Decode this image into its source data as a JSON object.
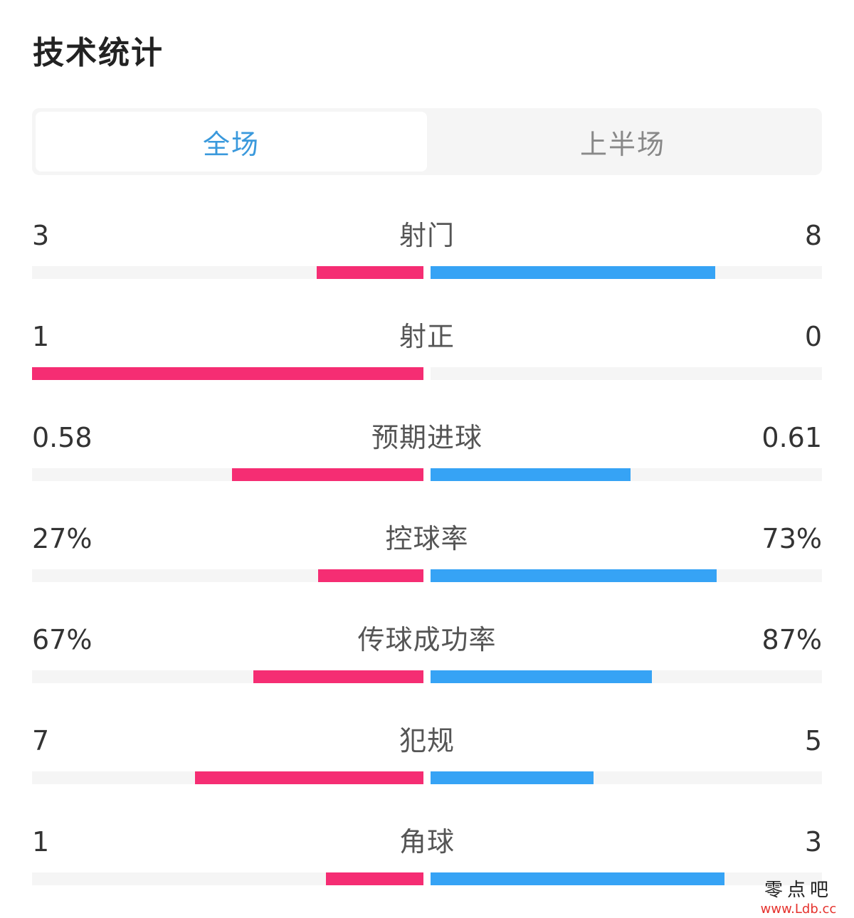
{
  "header": {
    "title": "技术统计"
  },
  "tabs": [
    {
      "label": "全场",
      "active": true
    },
    {
      "label": "上半场",
      "active": false
    }
  ],
  "colors": {
    "home": "#f52d73",
    "away": "#36a3f5",
    "active_tab": "#3a99dc",
    "inactive_tab": "#888888"
  },
  "stats": [
    {
      "label": "射门",
      "home": "3",
      "away": "8",
      "home_share": 0.273,
      "away_share": 0.727
    },
    {
      "label": "射正",
      "home": "1",
      "away": "0",
      "home_share": 1.0,
      "away_share": 0.0
    },
    {
      "label": "预期进球",
      "home": "0.58",
      "away": "0.61",
      "home_share": 0.49,
      "away_share": 0.51
    },
    {
      "label": "控球率",
      "home": "27%",
      "away": "73%",
      "home_share": 0.27,
      "away_share": 0.73
    },
    {
      "label": "传球成功率",
      "home": "67%",
      "away": "87%",
      "home_share": 0.435,
      "away_share": 0.565
    },
    {
      "label": "犯规",
      "home": "7",
      "away": "5",
      "home_share": 0.583,
      "away_share": 0.417
    },
    {
      "label": "角球",
      "home": "1",
      "away": "3",
      "home_share": 0.25,
      "away_share": 0.75
    }
  ],
  "watermark": {
    "text": "零点吧",
    "url": "www.Ldb.cc"
  }
}
